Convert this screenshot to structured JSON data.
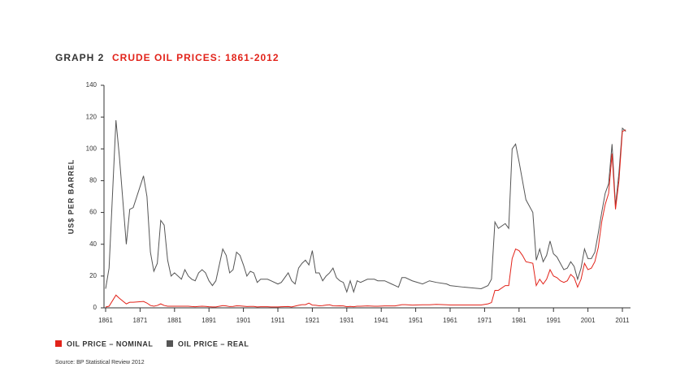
{
  "chart_data": {
    "type": "line",
    "label": "GRAPH 2",
    "title": "CRUDE OIL PRICES: 1861-2012",
    "ylabel": "US$ PER BARREL",
    "source": "Source: BP Statistical Review 2012",
    "legend": "bottom-left",
    "x": [
      1861,
      1862,
      1864,
      1865,
      1867,
      1868,
      1869,
      1872,
      1873,
      1874,
      1875,
      1876,
      1877,
      1878,
      1879,
      1880,
      1881,
      1883,
      1884,
      1885,
      1886,
      1887,
      1888,
      1889,
      1890,
      1891,
      1892,
      1893,
      1895,
      1896,
      1897,
      1898,
      1899,
      1900,
      1901,
      1902,
      1903,
      1904,
      1905,
      1906,
      1908,
      1909,
      1911,
      1912,
      1914,
      1915,
      1916,
      1917,
      1918,
      1919,
      1920,
      1921,
      1922,
      1923,
      1924,
      1925,
      1926,
      1927,
      1928,
      1929,
      1930,
      1931,
      1932,
      1933,
      1934,
      1935,
      1937,
      1939,
      1940,
      1942,
      1944,
      1945,
      1946,
      1947,
      1948,
      1950,
      1953,
      1955,
      1957,
      1960,
      1961,
      1965,
      1970,
      1972,
      1973,
      1974,
      1975,
      1977,
      1978,
      1979,
      1980,
      1981,
      1982,
      1983,
      1985,
      1986,
      1987,
      1988,
      1989,
      1990,
      1991,
      1992,
      1993,
      1994,
      1995,
      1996,
      1997,
      1998,
      1999,
      2000,
      2001,
      2002,
      2003,
      2004,
      2005,
      2006,
      2007,
      2008,
      2009,
      2010,
      2011,
      2012
    ],
    "series": [
      {
        "name": "OIL PRICE – NOMINAL",
        "color": "#e2231a",
        "values": [
          0.5,
          1,
          8,
          6,
          2.5,
          3.5,
          3.5,
          4,
          3,
          1.5,
          1,
          1.5,
          2.5,
          1.5,
          1,
          1,
          1,
          1,
          1,
          1,
          0.8,
          0.7,
          0.9,
          1,
          0.9,
          0.7,
          0.6,
          0.6,
          1.4,
          1.2,
          0.8,
          0.9,
          1.3,
          1.2,
          1,
          0.8,
          0.9,
          0.9,
          0.6,
          0.7,
          0.7,
          0.6,
          0.6,
          0.7,
          0.8,
          0.6,
          1.1,
          1.6,
          2,
          2,
          3,
          1.7,
          1.6,
          1.3,
          1.4,
          1.7,
          1.9,
          1.3,
          1.2,
          1.3,
          1.2,
          0.7,
          0.9,
          0.7,
          1,
          1,
          1.2,
          1,
          1,
          1.2,
          1.2,
          1.2,
          1.6,
          2,
          2,
          1.7,
          1.9,
          1.9,
          2.2,
          1.9,
          1.8,
          1.8,
          1.8,
          2.5,
          3.3,
          11,
          11,
          14,
          14,
          31,
          37,
          36,
          33,
          29,
          28,
          14,
          18,
          15,
          18,
          24,
          20,
          19,
          17,
          16,
          17,
          21,
          19,
          13,
          18,
          28,
          24,
          25,
          29,
          38,
          54,
          65,
          72,
          97,
          62,
          80,
          111,
          112
        ]
      },
      {
        "name": "OIL PRICE – REAL",
        "color": "#555555",
        "values": [
          12,
          25,
          118,
          95,
          40,
          62,
          63,
          83,
          70,
          35,
          23,
          28,
          55,
          52,
          30,
          20,
          22,
          18,
          24,
          20,
          18,
          17,
          22,
          24,
          22,
          17,
          14,
          17,
          37,
          33,
          22,
          24,
          35,
          33,
          27,
          20,
          23,
          22,
          16,
          18,
          18,
          17,
          15,
          16,
          22,
          17,
          15,
          25,
          28,
          30,
          27,
          36,
          22,
          22,
          17,
          20,
          22,
          25,
          19,
          17,
          16,
          10,
          17,
          10,
          17,
          16,
          18,
          18,
          17,
          17,
          15,
          14,
          13,
          19,
          19,
          17,
          15,
          17,
          16,
          15,
          14,
          13,
          12,
          14,
          18,
          54,
          50,
          53,
          50,
          100,
          103,
          92,
          80,
          68,
          60,
          30,
          37,
          29,
          33,
          42,
          34,
          32,
          28,
          24,
          25,
          29,
          26,
          18,
          25,
          37,
          31,
          31,
          35,
          47,
          60,
          72,
          78,
          103,
          64,
          85,
          113,
          111
        ]
      }
    ],
    "xlim": [
      1861,
      2013
    ],
    "xticks": [
      1861,
      1871,
      1881,
      1891,
      1901,
      1911,
      1921,
      1931,
      1941,
      1951,
      1961,
      1971,
      1981,
      1991,
      2001,
      2011
    ],
    "ylim": [
      0,
      140
    ],
    "yticks": [
      0,
      20,
      40,
      60,
      80,
      100,
      120,
      140
    ],
    "grid": false
  }
}
